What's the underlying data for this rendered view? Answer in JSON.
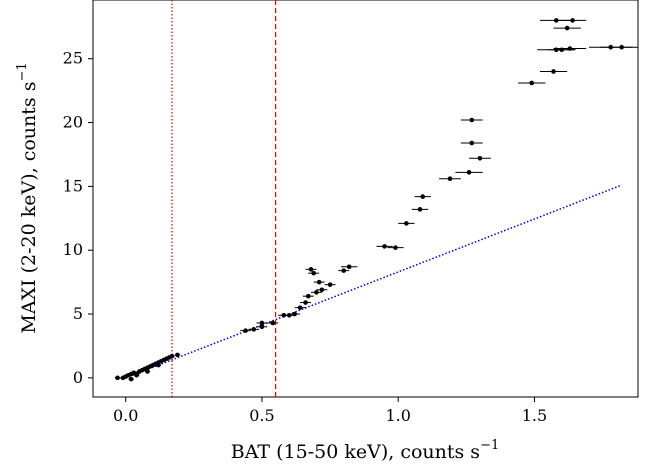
{
  "chart_data": {
    "type": "scatter",
    "title": "",
    "xlabel": "BAT (15-50 keV), counts s",
    "ylabel": "MAXI (2-20 keV), counts s",
    "unit_superscript": "−1",
    "xlim": [
      -0.12,
      1.88
    ],
    "ylim": [
      -1.5,
      29.6
    ],
    "x_ticks": [
      0.0,
      0.5,
      1.0,
      1.5
    ],
    "x_tick_labels": [
      "0.0",
      "0.5",
      "1.0",
      "1.5"
    ],
    "y_ticks": [
      0,
      5,
      10,
      15,
      20,
      25
    ],
    "y_tick_labels": [
      "0",
      "5",
      "10",
      "15",
      "20",
      "25"
    ],
    "grid": false,
    "legend": "none",
    "colors": {
      "points": "#000000",
      "vlines": "#dd0000",
      "fit": "#0000cc"
    },
    "vertical_lines": [
      {
        "x": 0.17,
        "style": "dotted"
      },
      {
        "x": 0.55,
        "style": "dashed"
      }
    ],
    "fit_line": {
      "style": "dotted",
      "x": [
        0.0,
        1.82
      ],
      "y": [
        0.0,
        15.1
      ]
    },
    "series": [
      {
        "x": [
          -0.03,
          -0.01,
          0.0,
          0.01,
          0.02,
          0.03,
          0.04,
          0.02,
          0.05,
          0.06,
          0.07,
          0.08,
          0.09,
          0.1,
          0.11,
          0.12,
          0.13,
          0.14,
          0.15,
          0.16,
          0.17,
          0.19,
          0.04,
          0.08,
          0.12,
          0.44,
          0.47,
          0.5,
          0.5,
          0.54,
          0.58,
          0.6,
          0.62,
          0.64,
          0.66,
          0.67,
          0.68,
          0.69,
          0.7,
          0.71,
          0.72,
          0.75,
          0.8,
          0.82,
          0.95,
          0.99,
          1.03,
          1.08,
          1.09,
          1.19,
          1.26,
          1.27,
          1.27,
          1.3,
          1.49,
          1.57,
          1.58,
          1.58,
          1.6,
          1.62,
          1.63,
          1.64,
          1.78,
          1.82
        ],
        "x_err": [
          0.01,
          0.01,
          0.01,
          0.01,
          0.01,
          0.01,
          0.01,
          0.01,
          0.01,
          0.01,
          0.01,
          0.01,
          0.01,
          0.01,
          0.01,
          0.01,
          0.01,
          0.01,
          0.01,
          0.01,
          0.01,
          0.01,
          0.01,
          0.01,
          0.01,
          0.02,
          0.02,
          0.02,
          0.02,
          0.02,
          0.02,
          0.02,
          0.02,
          0.02,
          0.02,
          0.02,
          0.02,
          0.02,
          0.02,
          0.02,
          0.02,
          0.02,
          0.02,
          0.03,
          0.03,
          0.03,
          0.03,
          0.03,
          0.03,
          0.04,
          0.05,
          0.04,
          0.04,
          0.04,
          0.05,
          0.05,
          0.06,
          0.07,
          0.05,
          0.05,
          0.06,
          0.05,
          0.08,
          0.08
        ],
        "y": [
          0.0,
          0.0,
          0.1,
          0.2,
          0.3,
          0.4,
          0.3,
          -0.1,
          0.5,
          0.6,
          0.7,
          0.8,
          0.9,
          1.0,
          1.1,
          1.2,
          1.3,
          1.4,
          1.5,
          1.6,
          1.7,
          1.8,
          0.2,
          0.5,
          1.0,
          3.7,
          3.8,
          4.0,
          4.3,
          4.3,
          4.9,
          4.9,
          5.0,
          5.5,
          5.9,
          6.4,
          8.5,
          8.2,
          6.7,
          7.5,
          6.9,
          7.3,
          8.4,
          8.7,
          10.3,
          10.2,
          12.1,
          13.2,
          14.2,
          15.6,
          16.1,
          18.4,
          20.2,
          17.2,
          23.1,
          24.0,
          28.0,
          25.7,
          25.7,
          27.4,
          25.8,
          28.0,
          25.9,
          25.9
        ]
      }
    ]
  }
}
